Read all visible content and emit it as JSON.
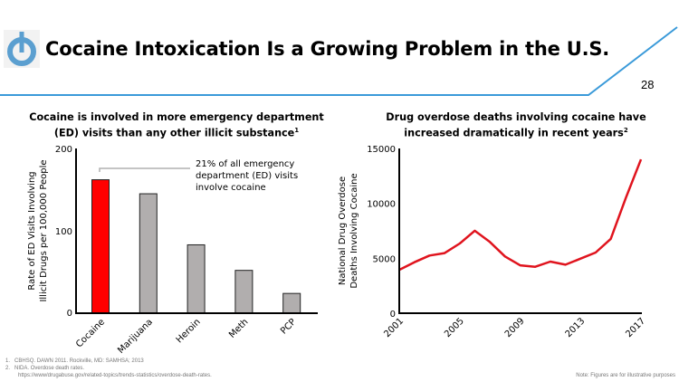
{
  "header": {
    "title": "Cocaine Intoxication Is a Growing Problem in the U.S.",
    "page_number": "28",
    "logo_icon": "power-button-icon",
    "accent_color": "#3a9ad9"
  },
  "chart_data": [
    {
      "type": "bar",
      "title": "Cocaine is involved in more emergency department (ED) visits than any other illicit substance",
      "title_line1": "Cocaine is involved in more emergency department",
      "title_line2": "(ED) visits than any other illicit substance",
      "title_footnote": "1",
      "ylabel_line1": "Rate of ED Visits Involving",
      "ylabel_line2": "Illicit Drugs per 100,000 People",
      "categories": [
        "Cocaine",
        "Marijuana",
        "Heroin",
        "Meth",
        "PCP"
      ],
      "values": [
        162,
        145,
        83,
        52,
        24
      ],
      "colors": [
        "#ff0000",
        "#b1aeae",
        "#b1aeae",
        "#b1aeae",
        "#b1aeae"
      ],
      "ylim": [
        0,
        200
      ],
      "yticks": [
        "0",
        "100",
        "200"
      ],
      "grid": false,
      "annotation": [
        "21% of all emergency",
        "department (ED) visits",
        "involve cocaine"
      ]
    },
    {
      "type": "line",
      "title": "Drug overdose deaths involving cocaine have increased dramatically in recent years",
      "title_line1": "Drug overdose deaths involving cocaine have",
      "title_line2": "increased dramatically in recent years",
      "title_footnote": "2",
      "ylabel_line1": "National Drug Overdose",
      "ylabel_line2": "Deaths Involving Cocaine",
      "x": [
        2001,
        2002,
        2003,
        2004,
        2005,
        2006,
        2007,
        2008,
        2009,
        2010,
        2011,
        2012,
        2013,
        2014,
        2015,
        2016,
        2017
      ],
      "values": [
        3950,
        4640,
        5250,
        5470,
        6350,
        7510,
        6490,
        5170,
        4360,
        4230,
        4700,
        4420,
        4970,
        5520,
        6770,
        10500,
        14000
      ],
      "color": "#e0141e",
      "xlim": [
        2001,
        2017
      ],
      "ylim": [
        0,
        15000
      ],
      "xticks": [
        "2001",
        "2005",
        "2009",
        "2013",
        "2017"
      ],
      "yticks": [
        "0",
        "5000",
        "10000",
        "15000"
      ],
      "grid": false
    }
  ],
  "footnotes": {
    "items": [
      {
        "num": "1.",
        "text": "CBHSQ. DAWN 2011. Rockville, MD: SAMHSA; 2013"
      },
      {
        "num": "2.",
        "text": "NIDA. Overdose death rates."
      }
    ],
    "url": "https://www/drugabuse.gov/related-topics/trends-statistics/overdose-death-rates.",
    "note": "Note: Figures are for illustrative purposes"
  }
}
